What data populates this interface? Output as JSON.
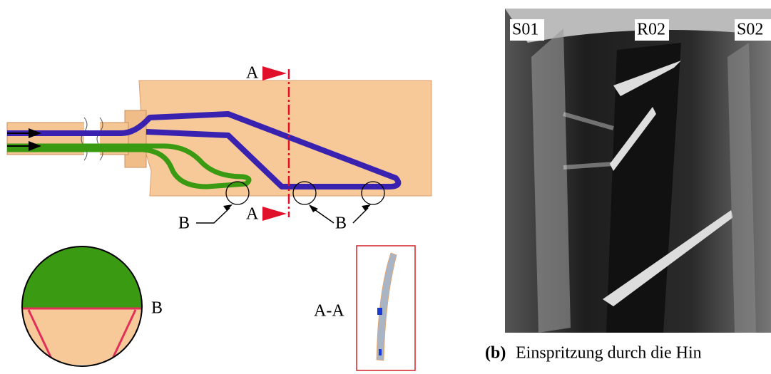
{
  "diagram": {
    "section_top": "A",
    "section_bottom": "A",
    "detail_left": "B",
    "detail_right": "B",
    "detail_zoom": "B",
    "section_view": "A-A"
  },
  "photo": {
    "labels": [
      "S01",
      "R02",
      "S02"
    ]
  },
  "caption": {
    "label": "(b)",
    "text": "Einspritzung durch die Hin"
  }
}
